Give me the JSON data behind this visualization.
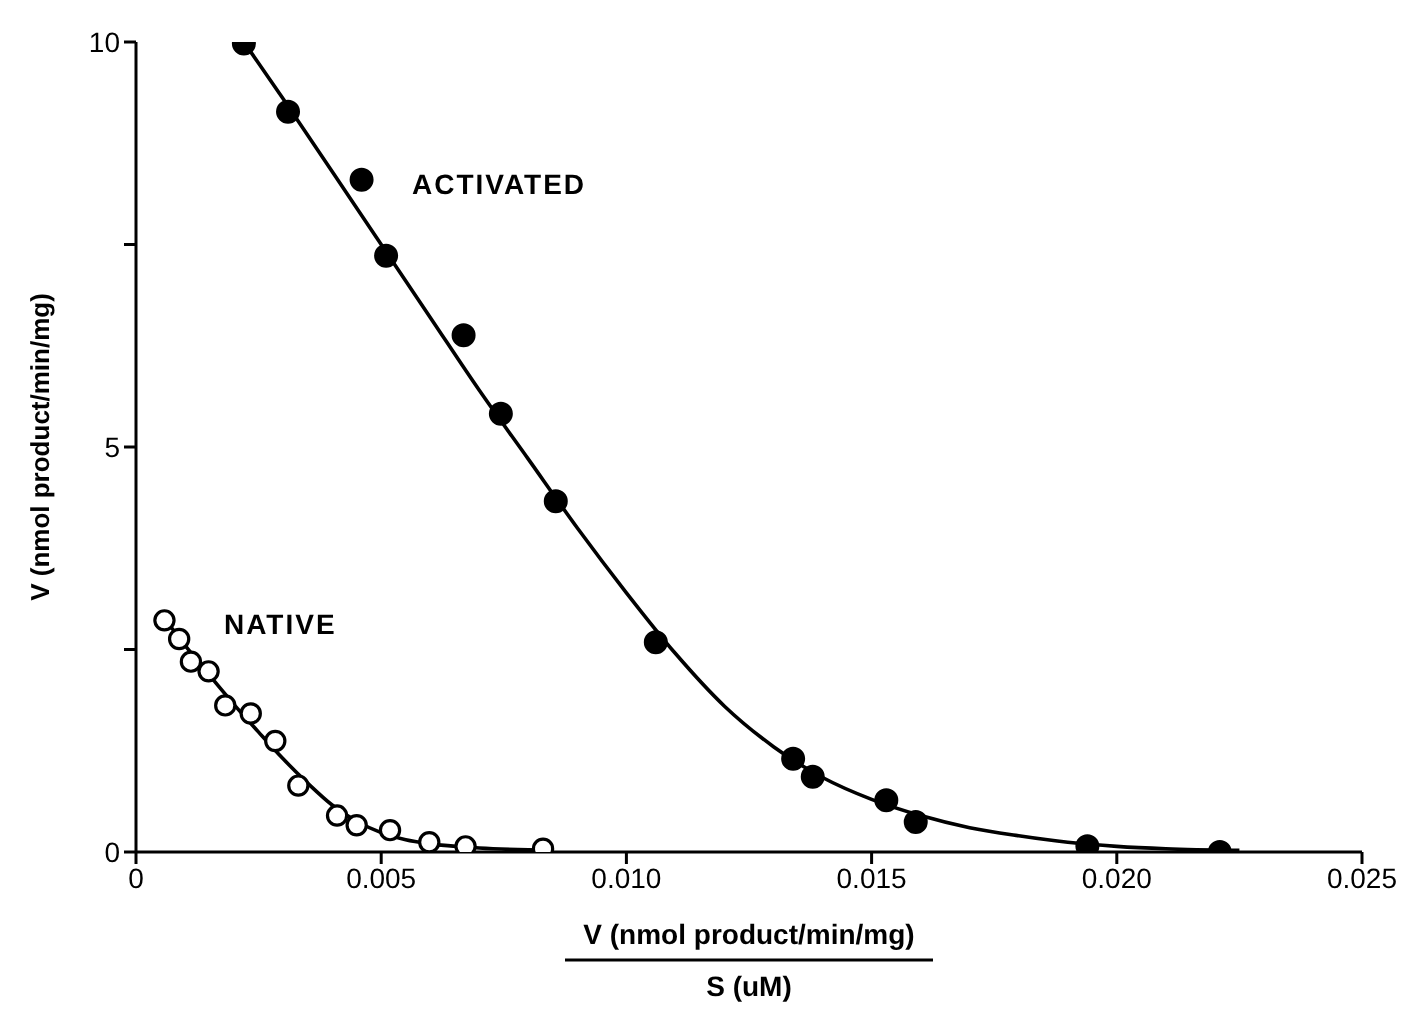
{
  "chart_data": {
    "type": "scatter",
    "xlabel": "V (nmol product/min/mg)\nS (uM)",
    "ylabel": "V (nmol product/min/mg)",
    "xlim": [
      0,
      0.025
    ],
    "xticks": [
      0,
      0.005,
      {
        "value": 0.01,
        "label": "0.010"
      },
      0.015,
      {
        "value": 0.02,
        "label": "0.020"
      },
      0.025
    ],
    "ylim": [
      0,
      10
    ],
    "yticks": [
      0,
      {
        "value": 2.5,
        "label": null
      },
      5,
      {
        "value": 7.5,
        "label": null
      },
      10
    ],
    "grid": false,
    "legend": false,
    "annotations": [
      "ACTIVATED",
      "NATIVE"
    ],
    "series": [
      {
        "marker": "circle",
        "color": "#000000",
        "x": [
          0.0022,
          0.0031,
          0.0046,
          0.0051,
          0.00668,
          0.00744,
          0.00856,
          0.0106,
          0.0134,
          0.0138,
          0.0153,
          0.0159,
          0.0194,
          0.0221
        ],
        "values": [
          9.98,
          9.14,
          8.3,
          7.36,
          6.38,
          5.41,
          4.33,
          2.59,
          1.15,
          0.93,
          0.64,
          0.37,
          0.07,
          0.0
        ]
      },
      {
        "marker": "open_circle",
        "color": "#000000",
        "x": [
          0.00058,
          0.00088,
          0.00112,
          0.00148,
          0.00182,
          0.00234,
          0.00284,
          0.00331,
          0.0041,
          0.0045,
          0.00518,
          0.00598,
          0.00672,
          0.0083
        ],
        "values": [
          2.86,
          2.63,
          2.35,
          2.23,
          1.81,
          1.71,
          1.37,
          0.82,
          0.45,
          0.33,
          0.27,
          0.12,
          0.07,
          0.04
        ]
      },
      {
        "type": "line",
        "marker": "none",
        "line_style": "solid",
        "color": "#000000",
        "x": [
          0.0022,
          0.003,
          0.004,
          0.005,
          0.006,
          0.007,
          0.008,
          0.009,
          0.01,
          0.011,
          0.012,
          0.013,
          0.014,
          0.015,
          0.016,
          0.017,
          0.018,
          0.019,
          0.02,
          0.021,
          0.0225
        ],
        "values": [
          10.0,
          9.3,
          8.4,
          7.5,
          6.6,
          5.7,
          4.85,
          4.0,
          3.2,
          2.45,
          1.8,
          1.3,
          0.92,
          0.65,
          0.45,
          0.3,
          0.2,
          0.12,
          0.07,
          0.04,
          0.02
        ]
      },
      {
        "type": "line",
        "marker": "none",
        "line_style": "solid",
        "color": "#000000",
        "x": [
          0.0005,
          0.001,
          0.0015,
          0.002,
          0.0025,
          0.003,
          0.0035,
          0.004,
          0.0045,
          0.005,
          0.0055,
          0.006,
          0.007,
          0.0085
        ],
        "values": [
          2.95,
          2.55,
          2.18,
          1.82,
          1.48,
          1.15,
          0.85,
          0.58,
          0.38,
          0.24,
          0.15,
          0.1,
          0.05,
          0.02
        ]
      }
    ]
  }
}
